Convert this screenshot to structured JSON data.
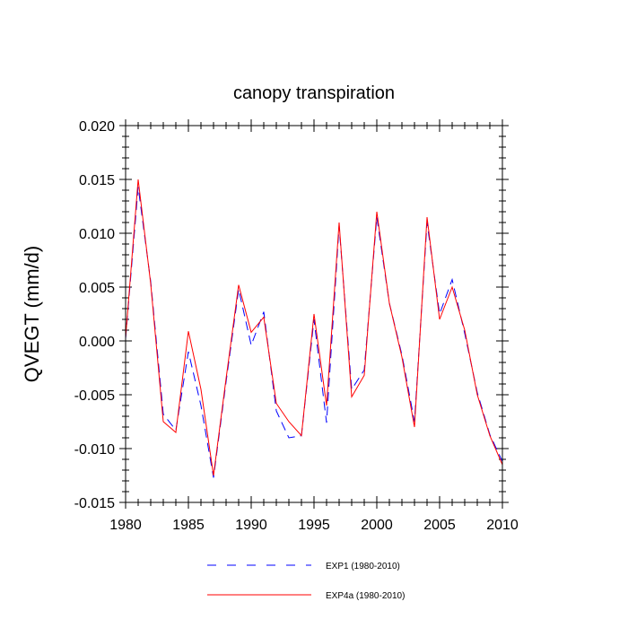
{
  "chart_data": {
    "type": "line",
    "title": "canopy transpiration",
    "xlabel": "",
    "ylabel": "QVEGT  (mm/d)",
    "xlim": [
      1980,
      2010
    ],
    "ylim": [
      -0.015,
      0.02
    ],
    "x_ticks": [
      1980,
      1985,
      1990,
      1995,
      2000,
      2005,
      2010
    ],
    "y_ticks": [
      -0.015,
      -0.01,
      -0.005,
      0.0,
      0.005,
      0.01,
      0.015,
      0.02
    ],
    "y_tick_labels": [
      "-0.015",
      "-0.010",
      "-0.005",
      "0.000",
      "0.005",
      "0.010",
      "0.015",
      "0.020"
    ],
    "grid": false,
    "legend_position": "bottom",
    "x": [
      1980,
      1981,
      1982,
      1983,
      1984,
      1985,
      1986,
      1987,
      1988,
      1989,
      1990,
      1991,
      1992,
      1993,
      1994,
      1995,
      1996,
      1997,
      1998,
      1999,
      2000,
      2001,
      2002,
      2003,
      2004,
      2005,
      2006,
      2007,
      2008,
      2009,
      2010
    ],
    "series": [
      {
        "name": "EXP1 (1980-2010)",
        "color": "#0000ff",
        "dash": "dashed",
        "values": [
          0.0002,
          0.0143,
          0.0055,
          -0.0068,
          -0.0083,
          -0.001,
          -0.006,
          -0.0127,
          -0.0038,
          0.0048,
          -0.0004,
          0.0027,
          -0.0065,
          -0.009,
          -0.0088,
          0.002,
          -0.0076,
          0.0107,
          -0.0045,
          -0.0027,
          0.0115,
          0.0035,
          -0.0013,
          -0.0075,
          0.011,
          0.0025,
          0.0057,
          0.0007,
          -0.0048,
          -0.0087,
          -0.0112
        ]
      },
      {
        "name": "EXP4a (1980-2010)",
        "color": "#ff0000",
        "dash": "solid",
        "values": [
          0.0003,
          0.015,
          0.0053,
          -0.0075,
          -0.0085,
          0.0009,
          -0.0045,
          -0.0125,
          -0.0035,
          0.0052,
          0.0008,
          0.0022,
          -0.0058,
          -0.0075,
          -0.0088,
          0.0025,
          -0.006,
          0.011,
          -0.0052,
          -0.0032,
          0.012,
          0.0035,
          -0.0015,
          -0.008,
          0.0115,
          0.002,
          0.005,
          0.001,
          -0.005,
          -0.0088,
          -0.0115
        ]
      }
    ]
  }
}
